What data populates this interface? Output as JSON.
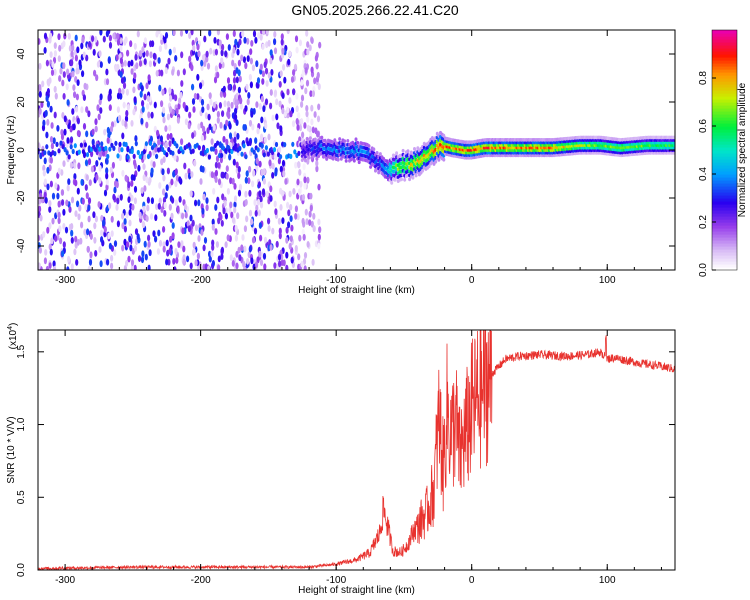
{
  "title": "GN05.2025.266.22.41.C20",
  "colors": {
    "snr_line": "#e8322e",
    "axis": "#000000",
    "background": "#ffffff"
  },
  "chart_data": [
    {
      "type": "heatmap",
      "name": "spectrogram",
      "xlabel": "Height of straight line (km)",
      "ylabel": "Frequency (Hz)",
      "xlim": [
        -320,
        150
      ],
      "ylim": [
        -50,
        50
      ],
      "xticks": [
        -300,
        -200,
        -100,
        0,
        100
      ],
      "xtick_labels": [
        "-300",
        "-200",
        "-100",
        "0",
        "100"
      ],
      "yticks": [
        -40,
        -20,
        0,
        20,
        40
      ],
      "ytick_labels": [
        "-40",
        "-20",
        "0",
        "20",
        "40"
      ],
      "noise_region_x": [
        -320,
        -120
      ],
      "signal_track": {
        "x": [
          -125,
          -110,
          -95,
          -85,
          -75,
          -68,
          -62,
          -55,
          -45,
          -35,
          -28,
          -22,
          -15,
          -5,
          0,
          10,
          30,
          60,
          80,
          95,
          110,
          130,
          150
        ],
        "freq": [
          0,
          1,
          0,
          0,
          -3,
          -6,
          -8,
          -7,
          -6,
          -3,
          0,
          2,
          1,
          0,
          0,
          1,
          1,
          1,
          2,
          2,
          1,
          2,
          2
        ],
        "amplitude": [
          0.3,
          0.4,
          0.4,
          0.45,
          0.4,
          0.35,
          0.5,
          0.75,
          0.8,
          0.85,
          0.9,
          0.95,
          0.9,
          0.9,
          0.95,
          0.95,
          0.9,
          0.9,
          0.75,
          0.7,
          0.75,
          0.7,
          0.65
        ]
      },
      "colorbar": {
        "label": "Normalized spectral amplitude",
        "range": [
          0,
          1
        ],
        "ticks": [
          0.0,
          0.2,
          0.4,
          0.6,
          0.8
        ],
        "tick_labels": [
          "0.0",
          "0.2",
          "0.4",
          "0.6",
          "0.8"
        ]
      }
    },
    {
      "type": "line",
      "name": "snr",
      "xlabel": "Height of straight line (km)",
      "ylabel": "SNR (10 * V/V)",
      "multiplier": "(x10",
      "multiplier_exp": "4",
      "multiplier_close": ")",
      "xlim": [
        -320,
        150
      ],
      "ylim": [
        0,
        1.65
      ],
      "xticks": [
        -300,
        -200,
        -100,
        0,
        100
      ],
      "xtick_labels": [
        "-300",
        "-200",
        "-100",
        "0",
        "100"
      ],
      "yticks": [
        0.0,
        0.5,
        1.0,
        1.5
      ],
      "ytick_labels": [
        "0.0",
        "0.5",
        "1.0",
        "1.5"
      ],
      "series": [
        {
          "name": "SNR",
          "x": [
            -320,
            -250,
            -200,
            -150,
            -120,
            -100,
            -85,
            -75,
            -68,
            -65,
            -62,
            -58,
            -52,
            -47,
            -43,
            -38,
            -33,
            -28,
            -24,
            -21,
            -18,
            -15,
            -12,
            -9,
            -5,
            0,
            8,
            15,
            25,
            35,
            50,
            70,
            85,
            95,
            100,
            105,
            115,
            125,
            140,
            150
          ],
          "y": [
            0.01,
            0.02,
            0.02,
            0.02,
            0.02,
            0.04,
            0.07,
            0.12,
            0.25,
            0.42,
            0.3,
            0.13,
            0.12,
            0.18,
            0.27,
            0.33,
            0.4,
            0.55,
            1.05,
            0.7,
            1.12,
            0.9,
            1.05,
            0.78,
            0.92,
            1.1,
            1.25,
            1.35,
            1.45,
            1.47,
            1.48,
            1.47,
            1.48,
            1.5,
            1.45,
            1.46,
            1.44,
            1.42,
            1.4,
            1.38
          ]
        }
      ]
    }
  ]
}
